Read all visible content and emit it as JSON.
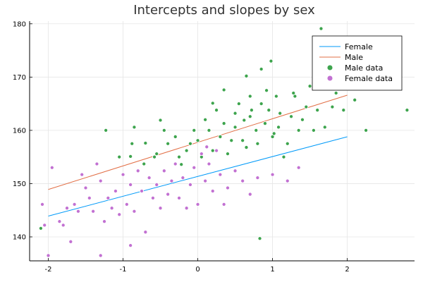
{
  "chart_data": {
    "type": "scatter",
    "title": "Intercepts and slopes by sex",
    "xlabel": "",
    "ylabel": "",
    "xlim": [
      -2.25,
      2.9
    ],
    "ylim": [
      135.5,
      180.5
    ],
    "x_ticks": [
      -2,
      -1,
      0,
      1,
      2
    ],
    "y_ticks": [
      140,
      150,
      160,
      170,
      180
    ],
    "grid": true,
    "legend_position": "top-right",
    "colors": {
      "female_line": "#009af9",
      "male_line": "#e26f46",
      "male_points": "#3da44d",
      "female_points": "#c271d2"
    },
    "legend": [
      {
        "label": "Female",
        "kind": "line",
        "color": "#009af9"
      },
      {
        "label": "Male",
        "kind": "line",
        "color": "#e26f46"
      },
      {
        "label": "Male data",
        "kind": "marker",
        "color": "#3da44d"
      },
      {
        "label": "Female data",
        "kind": "marker",
        "color": "#c271d2"
      }
    ],
    "series": [
      {
        "name": "Female",
        "type": "line",
        "x": [
          -2.0,
          2.0
        ],
        "y": [
          143.9,
          158.8
        ]
      },
      {
        "name": "Male",
        "type": "line",
        "x": [
          -2.0,
          2.0
        ],
        "y": [
          148.9,
          166.6
        ]
      },
      {
        "name": "Male data",
        "type": "scatter",
        "points": [
          [
            -2.1,
            141.6
          ],
          [
            -1.23,
            160.0
          ],
          [
            -1.05,
            155.0
          ],
          [
            -0.88,
            157.5
          ],
          [
            -0.9,
            155.1
          ],
          [
            -0.85,
            160.6
          ],
          [
            -0.7,
            157.6
          ],
          [
            -0.58,
            155.0
          ],
          [
            -0.5,
            161.9
          ],
          [
            -0.45,
            160.0
          ],
          [
            -0.4,
            157.5
          ],
          [
            -0.3,
            158.8
          ],
          [
            -0.25,
            155.0
          ],
          [
            -0.22,
            153.6
          ],
          [
            -0.15,
            156.2
          ],
          [
            -0.1,
            157.5
          ],
          [
            -0.05,
            160.0
          ],
          [
            0.0,
            158.1
          ],
          [
            0.05,
            155.0
          ],
          [
            0.1,
            162.0
          ],
          [
            0.15,
            160.0
          ],
          [
            0.2,
            156.2
          ],
          [
            0.25,
            163.8
          ],
          [
            0.3,
            158.8
          ],
          [
            0.35,
            161.3
          ],
          [
            0.4,
            155.6
          ],
          [
            0.45,
            158.1
          ],
          [
            0.5,
            160.6
          ],
          [
            0.5,
            163.2
          ],
          [
            0.55,
            165.0
          ],
          [
            0.6,
            158.1
          ],
          [
            0.62,
            161.9
          ],
          [
            0.65,
            156.8
          ],
          [
            0.7,
            166.4
          ],
          [
            0.72,
            163.8
          ],
          [
            0.78,
            160.0
          ],
          [
            0.8,
            157.5
          ],
          [
            0.85,
            165.0
          ],
          [
            0.9,
            161.3
          ],
          [
            0.92,
            167.5
          ],
          [
            0.95,
            163.8
          ],
          [
            1.0,
            158.8
          ],
          [
            1.05,
            166.4
          ],
          [
            1.08,
            160.6
          ],
          [
            1.1,
            163.2
          ],
          [
            1.15,
            155.0
          ],
          [
            1.2,
            157.5
          ],
          [
            1.25,
            162.6
          ],
          [
            1.3,
            166.4
          ],
          [
            1.35,
            160.0
          ],
          [
            1.45,
            164.4
          ],
          [
            1.5,
            168.3
          ],
          [
            1.55,
            160.0
          ],
          [
            1.6,
            163.8
          ],
          [
            1.65,
            179.1
          ],
          [
            1.7,
            160.6
          ],
          [
            1.8,
            164.4
          ],
          [
            1.85,
            167.0
          ],
          [
            1.95,
            163.8
          ],
          [
            2.1,
            165.7
          ],
          [
            2.25,
            160.0
          ],
          [
            2.8,
            163.8
          ],
          [
            0.98,
            173.0
          ],
          [
            0.65,
            170.2
          ],
          [
            0.85,
            171.5
          ],
          [
            0.83,
            139.7
          ],
          [
            0.35,
            167.6
          ],
          [
            1.02,
            159.4
          ],
          [
            0.7,
            162.6
          ],
          [
            0.2,
            165.1
          ],
          [
            -0.55,
            155.6
          ],
          [
            -0.72,
            153.7
          ],
          [
            1.28,
            167.0
          ],
          [
            1.4,
            162.0
          ],
          [
            1.55,
            168.9
          ]
        ]
      },
      {
        "name": "Female data",
        "type": "scatter",
        "points": [
          [
            -2.08,
            146.1
          ],
          [
            -2.05,
            142.2
          ],
          [
            -2.0,
            136.5
          ],
          [
            -1.95,
            153.0
          ],
          [
            -1.85,
            142.9
          ],
          [
            -1.8,
            142.2
          ],
          [
            -1.75,
            145.4
          ],
          [
            -1.7,
            139.1
          ],
          [
            -1.65,
            146.1
          ],
          [
            -1.6,
            144.8
          ],
          [
            -1.55,
            151.7
          ],
          [
            -1.5,
            149.2
          ],
          [
            -1.45,
            147.3
          ],
          [
            -1.4,
            144.8
          ],
          [
            -1.35,
            153.7
          ],
          [
            -1.3,
            150.5
          ],
          [
            -1.25,
            142.9
          ],
          [
            -1.2,
            147.3
          ],
          [
            -1.15,
            145.4
          ],
          [
            -1.1,
            148.6
          ],
          [
            -1.05,
            144.2
          ],
          [
            -1.0,
            151.7
          ],
          [
            -0.95,
            146.1
          ],
          [
            -0.9,
            149.8
          ],
          [
            -0.85,
            144.8
          ],
          [
            -0.8,
            152.4
          ],
          [
            -0.75,
            148.6
          ],
          [
            -0.7,
            140.9
          ],
          [
            -0.65,
            151.1
          ],
          [
            -0.6,
            147.3
          ],
          [
            -0.55,
            149.8
          ],
          [
            -0.5,
            145.4
          ],
          [
            -0.45,
            152.4
          ],
          [
            -0.4,
            148.0
          ],
          [
            -0.35,
            150.5
          ],
          [
            -0.3,
            153.7
          ],
          [
            -0.25,
            147.3
          ],
          [
            -0.2,
            151.1
          ],
          [
            -0.15,
            145.4
          ],
          [
            -0.1,
            149.8
          ],
          [
            -0.05,
            153.0
          ],
          [
            0.0,
            146.1
          ],
          [
            0.05,
            155.6
          ],
          [
            0.1,
            150.5
          ],
          [
            0.15,
            153.7
          ],
          [
            0.2,
            148.6
          ],
          [
            0.25,
            156.2
          ],
          [
            0.3,
            151.7
          ],
          [
            0.35,
            146.1
          ],
          [
            0.4,
            149.2
          ],
          [
            0.5,
            152.4
          ],
          [
            0.6,
            150.5
          ],
          [
            0.7,
            148.0
          ],
          [
            0.8,
            151.1
          ],
          [
            1.0,
            151.7
          ],
          [
            1.2,
            150.5
          ],
          [
            1.35,
            153.0
          ],
          [
            -1.3,
            136.5
          ],
          [
            -0.9,
            138.4
          ],
          [
            0.12,
            156.9
          ]
        ]
      }
    ]
  }
}
